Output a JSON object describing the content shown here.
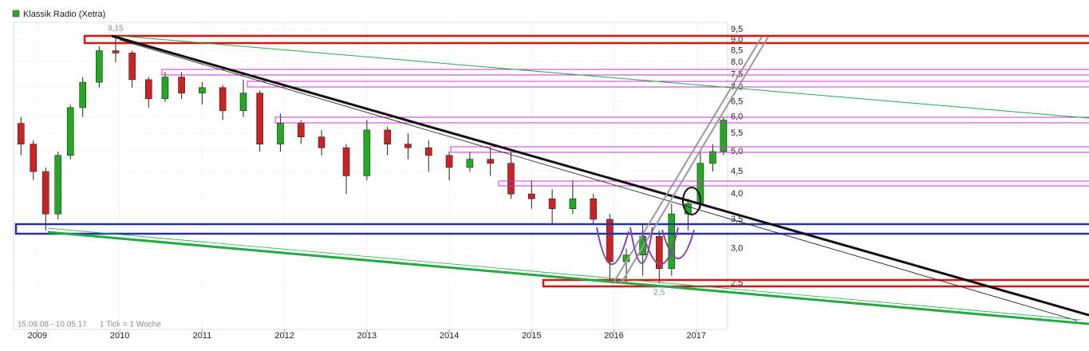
{
  "chart_data": {
    "type": "candlestick",
    "title": "Klassik Radio (Xetra)",
    "legend_color": "#22aa22",
    "date_range": "15.09.08 - 10.05.17",
    "tick_note": "1 Tick = 1 Woche",
    "annotations": [
      {
        "text": "9,15",
        "x": 2009.95,
        "y": 9.15
      },
      {
        "text": "2,5",
        "x": 2016.55,
        "y": 2.5
      }
    ],
    "x": [
      2008.8,
      2008.95,
      2009.1,
      2009.25,
      2009.4,
      2009.55,
      2009.75,
      2009.95,
      2010.15,
      2010.35,
      2010.55,
      2010.75,
      2011.0,
      2011.25,
      2011.5,
      2011.7,
      2011.95,
      2012.2,
      2012.45,
      2012.75,
      2013.0,
      2013.25,
      2013.5,
      2013.75,
      2014.0,
      2014.25,
      2014.5,
      2014.75,
      2015.0,
      2015.25,
      2015.5,
      2015.75,
      2015.95,
      2016.15,
      2016.35,
      2016.55,
      2016.7,
      2016.9,
      2017.05,
      2017.2,
      2017.33
    ],
    "open": [
      5.8,
      5.2,
      4.5,
      3.6,
      4.9,
      6.3,
      7.2,
      8.5,
      8.4,
      7.3,
      6.6,
      7.4,
      6.8,
      7.0,
      6.2,
      6.8,
      5.2,
      5.8,
      5.4,
      5.1,
      4.4,
      5.6,
      5.2,
      5.1,
      4.9,
      4.6,
      4.8,
      4.7,
      4.0,
      3.9,
      3.7,
      3.9,
      3.5,
      2.8,
      2.9,
      3.2,
      2.7,
      3.6,
      3.8,
      4.7,
      5.0
    ],
    "high": [
      6.0,
      5.3,
      4.6,
      5.0,
      6.4,
      7.4,
      8.7,
      9.15,
      8.5,
      7.4,
      7.6,
      7.6,
      7.2,
      7.1,
      7.3,
      6.9,
      6.1,
      5.9,
      5.6,
      5.2,
      5.9,
      5.7,
      5.5,
      5.3,
      5.0,
      5.0,
      5.1,
      5.0,
      4.3,
      4.1,
      4.3,
      4.0,
      3.6,
      3.0,
      3.4,
      3.3,
      3.8,
      3.9,
      5.0,
      5.2,
      6.0
    ],
    "low": [
      4.9,
      4.3,
      3.3,
      3.5,
      4.8,
      6.0,
      7.0,
      8.0,
      7.0,
      6.3,
      6.5,
      6.6,
      6.4,
      5.9,
      6.0,
      5.0,
      5.0,
      5.2,
      4.9,
      4.0,
      4.3,
      4.9,
      4.8,
      4.5,
      4.3,
      4.5,
      4.4,
      3.9,
      3.7,
      3.4,
      3.6,
      3.4,
      2.55,
      2.5,
      2.6,
      2.5,
      2.6,
      3.3,
      3.7,
      4.5,
      4.9
    ],
    "close": [
      5.2,
      4.5,
      3.6,
      4.9,
      6.3,
      7.2,
      8.5,
      8.4,
      7.3,
      6.6,
      7.4,
      6.8,
      7.0,
      6.2,
      6.8,
      5.2,
      5.8,
      5.4,
      5.1,
      4.4,
      5.6,
      5.2,
      5.1,
      4.9,
      4.6,
      4.8,
      4.7,
      4.0,
      3.9,
      3.7,
      3.9,
      3.5,
      2.8,
      2.9,
      3.2,
      2.7,
      3.6,
      3.8,
      4.7,
      5.0,
      5.9
    ],
    "up_color": "#22aa22",
    "down_color": "#cc2222",
    "log_scale": true,
    "xlim": [
      2008.71,
      2017.38
    ],
    "xticks": [
      2009,
      2010,
      2011,
      2012,
      2013,
      2014,
      2015,
      2016,
      2017
    ],
    "ylim": [
      1.96,
      9.87
    ],
    "yticks": [
      {
        "value": 2.5,
        "label": "2,5"
      },
      {
        "value": 3.0,
        "label": "3,0"
      },
      {
        "value": 3.5,
        "label": "3,5"
      },
      {
        "value": 4.0,
        "label": "4,0"
      },
      {
        "value": 4.5,
        "label": "4,5"
      },
      {
        "value": 5.0,
        "label": "5,0"
      },
      {
        "value": 5.5,
        "label": "5,5"
      },
      {
        "value": 6.0,
        "label": "6,0"
      },
      {
        "value": 6.5,
        "label": "6,5"
      },
      {
        "value": 7.0,
        "label": "7,0"
      },
      {
        "value": 7.5,
        "label": "7,5"
      },
      {
        "value": 8.0,
        "label": "8,0"
      },
      {
        "value": 8.5,
        "label": "8,5"
      },
      {
        "value": 9.0,
        "label": "9,0"
      },
      {
        "value": 9.5,
        "label": "9,5"
      }
    ],
    "grid": true
  }
}
